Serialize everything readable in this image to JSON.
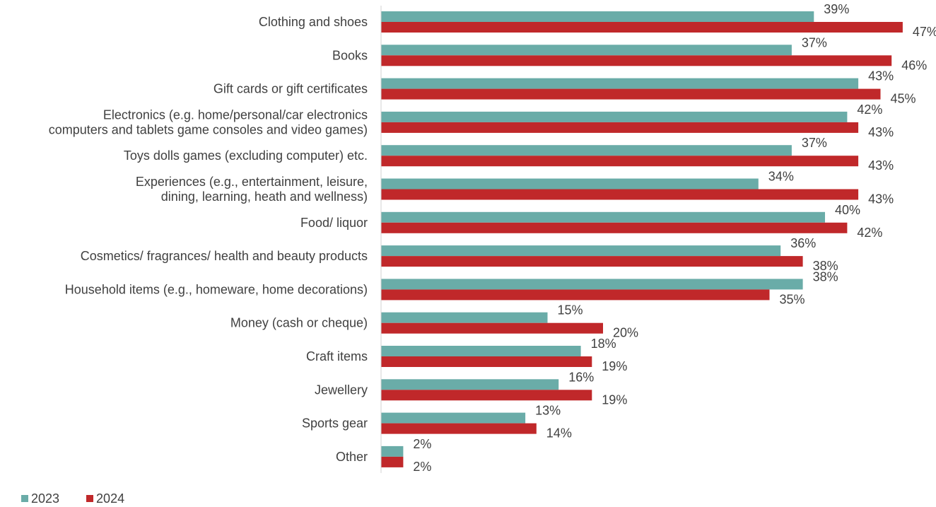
{
  "chart_data": {
    "type": "bar",
    "orientation": "horizontal",
    "categories": [
      [
        "Clothing and shoes"
      ],
      [
        "Books"
      ],
      [
        "Gift cards or gift certificates"
      ],
      [
        "Electronics (e.g. home/personal/car electronics",
        "computers and tablets game consoles  and video games)"
      ],
      [
        "Toys  dolls  games (excluding computer) etc."
      ],
      [
        "Experiences (e.g., entertainment, leisure,",
        "dining, learning, heath and wellness)"
      ],
      [
        "Food/ liquor"
      ],
      [
        "Cosmetics/ fragrances/ health and beauty products"
      ],
      [
        "Household items (e.g., homeware, home decorations)"
      ],
      [
        "Money (cash or cheque)"
      ],
      [
        "Craft items"
      ],
      [
        "Jewellery"
      ],
      [
        "Sports gear"
      ],
      [
        "Other"
      ]
    ],
    "series": [
      {
        "name": "2023",
        "color": "#6aaca8",
        "values": [
          39,
          37,
          43,
          42,
          37,
          34,
          40,
          36,
          38,
          15,
          18,
          16,
          13,
          2
        ]
      },
      {
        "name": "2024",
        "color": "#c0282a",
        "values": [
          47,
          46,
          45,
          43,
          43,
          43,
          42,
          38,
          35,
          20,
          19,
          19,
          14,
          2
        ]
      }
    ],
    "value_suffix": "%",
    "xlim": [
      0,
      50
    ],
    "grid": false,
    "legend_position": "bottom-left"
  }
}
